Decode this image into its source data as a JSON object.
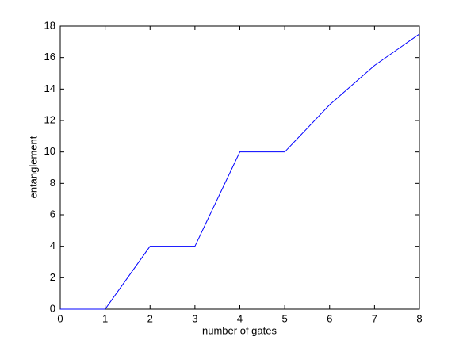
{
  "chart_data": {
    "type": "line",
    "x": [
      0,
      1,
      2,
      3,
      4,
      5,
      6,
      7,
      8
    ],
    "series": [
      {
        "color": "#0000ff",
        "values": [
          0,
          0,
          4,
          4,
          10,
          10,
          13,
          15.5,
          17.5
        ]
      }
    ],
    "xlabel": "number of gates",
    "ylabel": "entanglement",
    "xlim": [
      0,
      8
    ],
    "xticks": [
      0,
      1,
      2,
      3,
      4,
      5,
      6,
      7,
      8
    ],
    "ylim": [
      0,
      18
    ],
    "yticks": [
      0,
      2,
      4,
      6,
      8,
      10,
      12,
      14,
      16,
      18
    ],
    "grid": false
  }
}
